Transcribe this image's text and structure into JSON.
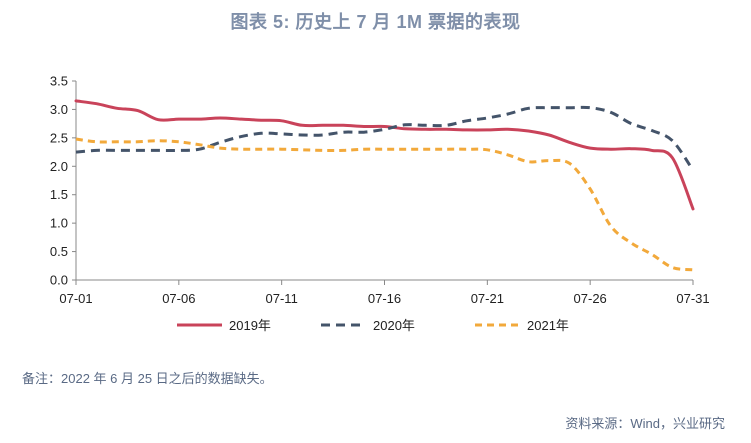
{
  "title": "图表 5:  历史上 7 月 1M 票据的表现",
  "note": "备注：2022 年 6 月 25 日之后的数据缺失。",
  "source": "资料来源：Wind，兴业研究",
  "chart_data": {
    "type": "line",
    "title": "图表 5:  历史上 7 月 1M 票据的表现",
    "xlabel": "",
    "ylabel": "",
    "x": [
      1,
      2,
      3,
      4,
      5,
      6,
      7,
      8,
      9,
      10,
      11,
      12,
      13,
      14,
      15,
      16,
      17,
      18,
      19,
      20,
      21,
      22,
      23,
      24,
      25,
      26,
      27,
      28,
      29,
      30,
      31
    ],
    "xticks": [
      {
        "x": 1,
        "label": "07-01"
      },
      {
        "x": 6,
        "label": "07-06"
      },
      {
        "x": 11,
        "label": "07-11"
      },
      {
        "x": 16,
        "label": "07-16"
      },
      {
        "x": 21,
        "label": "07-21"
      },
      {
        "x": 26,
        "label": "07-26"
      },
      {
        "x": 31,
        "label": "07-31"
      }
    ],
    "xlim": [
      1,
      31
    ],
    "ylim": [
      0,
      3.5
    ],
    "yticks": [
      "0.0",
      "0.5",
      "1.0",
      "1.5",
      "2.0",
      "2.5",
      "3.0",
      "3.5"
    ],
    "grid": false,
    "legend": "bottom",
    "series": [
      {
        "name": "2019年",
        "color": "#c9435a",
        "style": "solid",
        "values": [
          3.15,
          3.1,
          3.02,
          2.98,
          2.82,
          2.83,
          2.83,
          2.85,
          2.83,
          2.81,
          2.8,
          2.72,
          2.72,
          2.72,
          2.7,
          2.7,
          2.66,
          2.65,
          2.65,
          2.64,
          2.64,
          2.65,
          2.62,
          2.55,
          2.42,
          2.32,
          2.3,
          2.31,
          2.28,
          2.15,
          1.25
        ]
      },
      {
        "name": "2020年",
        "color": "#44546a",
        "style": "dashed",
        "values": [
          2.25,
          2.28,
          2.28,
          2.28,
          2.28,
          2.28,
          2.3,
          2.42,
          2.52,
          2.58,
          2.57,
          2.55,
          2.55,
          2.6,
          2.6,
          2.65,
          2.73,
          2.72,
          2.72,
          2.8,
          2.85,
          2.92,
          3.02,
          3.03,
          3.03,
          3.03,
          2.95,
          2.75,
          2.63,
          2.45,
          1.93
        ]
      },
      {
        "name": "2021年",
        "color": "#f2a93b",
        "style": "dashed",
        "values": [
          2.48,
          2.43,
          2.43,
          2.43,
          2.45,
          2.43,
          2.38,
          2.32,
          2.3,
          2.3,
          2.3,
          2.29,
          2.28,
          2.28,
          2.3,
          2.3,
          2.3,
          2.3,
          2.3,
          2.3,
          2.29,
          2.2,
          2.08,
          2.1,
          2.05,
          1.6,
          0.95,
          0.65,
          0.45,
          0.22,
          0.18
        ]
      }
    ]
  }
}
